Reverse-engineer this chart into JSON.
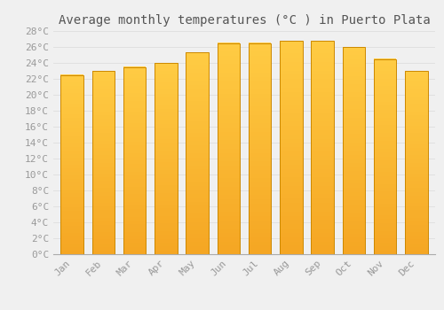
{
  "title": "Average monthly temperatures (°C ) in Puerto Plata",
  "months": [
    "Jan",
    "Feb",
    "Mar",
    "Apr",
    "May",
    "Jun",
    "Jul",
    "Aug",
    "Sep",
    "Oct",
    "Nov",
    "Dec"
  ],
  "values": [
    22.5,
    23.0,
    23.5,
    24.0,
    25.3,
    26.5,
    26.5,
    26.8,
    26.8,
    26.0,
    24.5,
    23.0
  ],
  "bar_color_top": "#FFCC44",
  "bar_color_bottom": "#F5A623",
  "bar_edge_color": "#CC8800",
  "ylim": [
    0,
    28
  ],
  "ytick_step": 2,
  "background_color": "#F0F0F0",
  "grid_color": "#DDDDDD",
  "title_fontsize": 10,
  "tick_fontsize": 8,
  "font_family": "monospace",
  "title_color": "#555555",
  "tick_color": "#999999"
}
